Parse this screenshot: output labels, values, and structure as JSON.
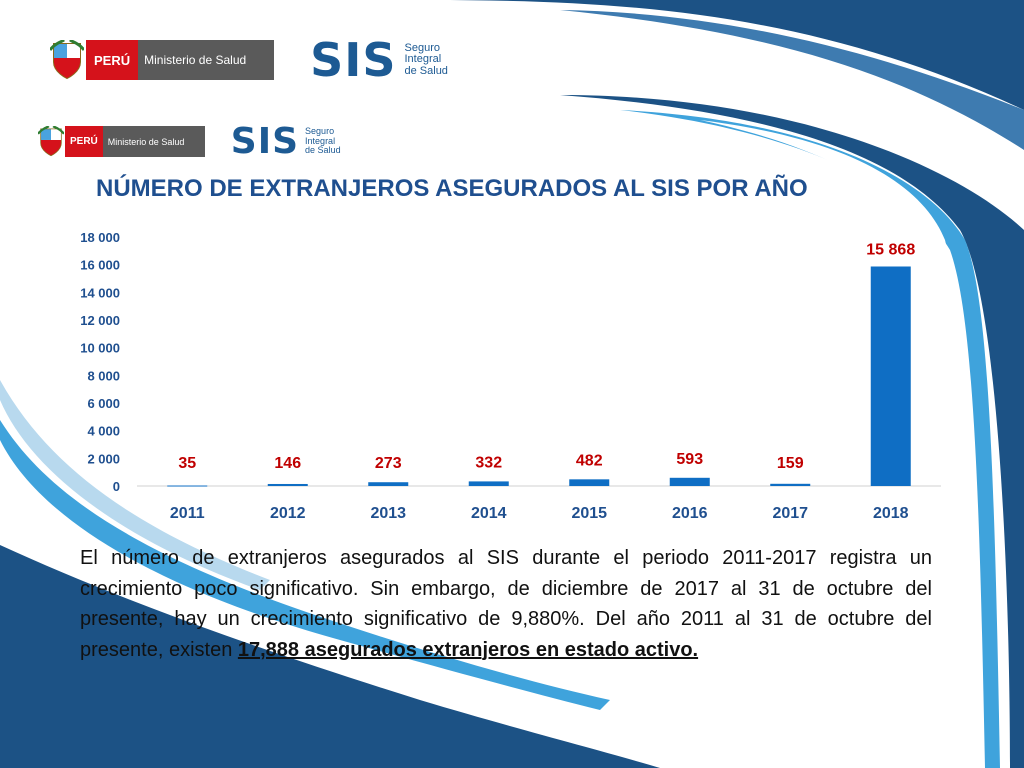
{
  "logo_top": {
    "peru": "PERÚ",
    "ministerio": "Ministerio de Salud",
    "sis": "SIS",
    "sis_sub": [
      "Seguro",
      "Integral",
      "de Salud"
    ]
  },
  "logo_second": {
    "peru": "PERÚ",
    "ministerio": "Ministerio de Salud",
    "sis": "SIS",
    "sis_sub": [
      "Seguro",
      "Integral",
      "de Salud"
    ]
  },
  "title": "NÚMERO DE EXTRANJEROS ASEGURADOS AL SIS POR AÑO",
  "chart_data": {
    "type": "bar",
    "categories": [
      "2011",
      "2012",
      "2013",
      "2014",
      "2015",
      "2016",
      "2017",
      "2018"
    ],
    "values": [
      35,
      146,
      273,
      332,
      482,
      593,
      159,
      15868
    ],
    "data_labels": [
      "35",
      "146",
      "273",
      "332",
      "482",
      "593",
      "159",
      "15 868"
    ],
    "y_ticks": [
      "0",
      "2 000",
      "4 000",
      "6 000",
      "8 000",
      "10 000",
      "12 000",
      "14 000",
      "16 000",
      "18 000"
    ],
    "ylim": [
      0,
      18000
    ],
    "grid": false,
    "bar_color": "#0f6ec4",
    "label_color": "#c00000",
    "axis_text_color": "#1f4f8f"
  },
  "paragraph": {
    "text": "El número de extranjeros asegurados al SIS durante el periodo 2011-2017 registra un crecimiento poco significativo. Sin embargo, de diciembre de 2017 al 31 de octubre del presente, hay un crecimiento significativo de 9,880%. Del año 2011 al 31 de octubre del presente, existen ",
    "highlight": "17,888 asegurados extranjeros en estado activo."
  },
  "colors": {
    "dark_blue": "#1c5285",
    "mid_blue": "#3e7bb0",
    "light_blue": "#36a2dc",
    "pale_blue": "#b8d9ee"
  }
}
